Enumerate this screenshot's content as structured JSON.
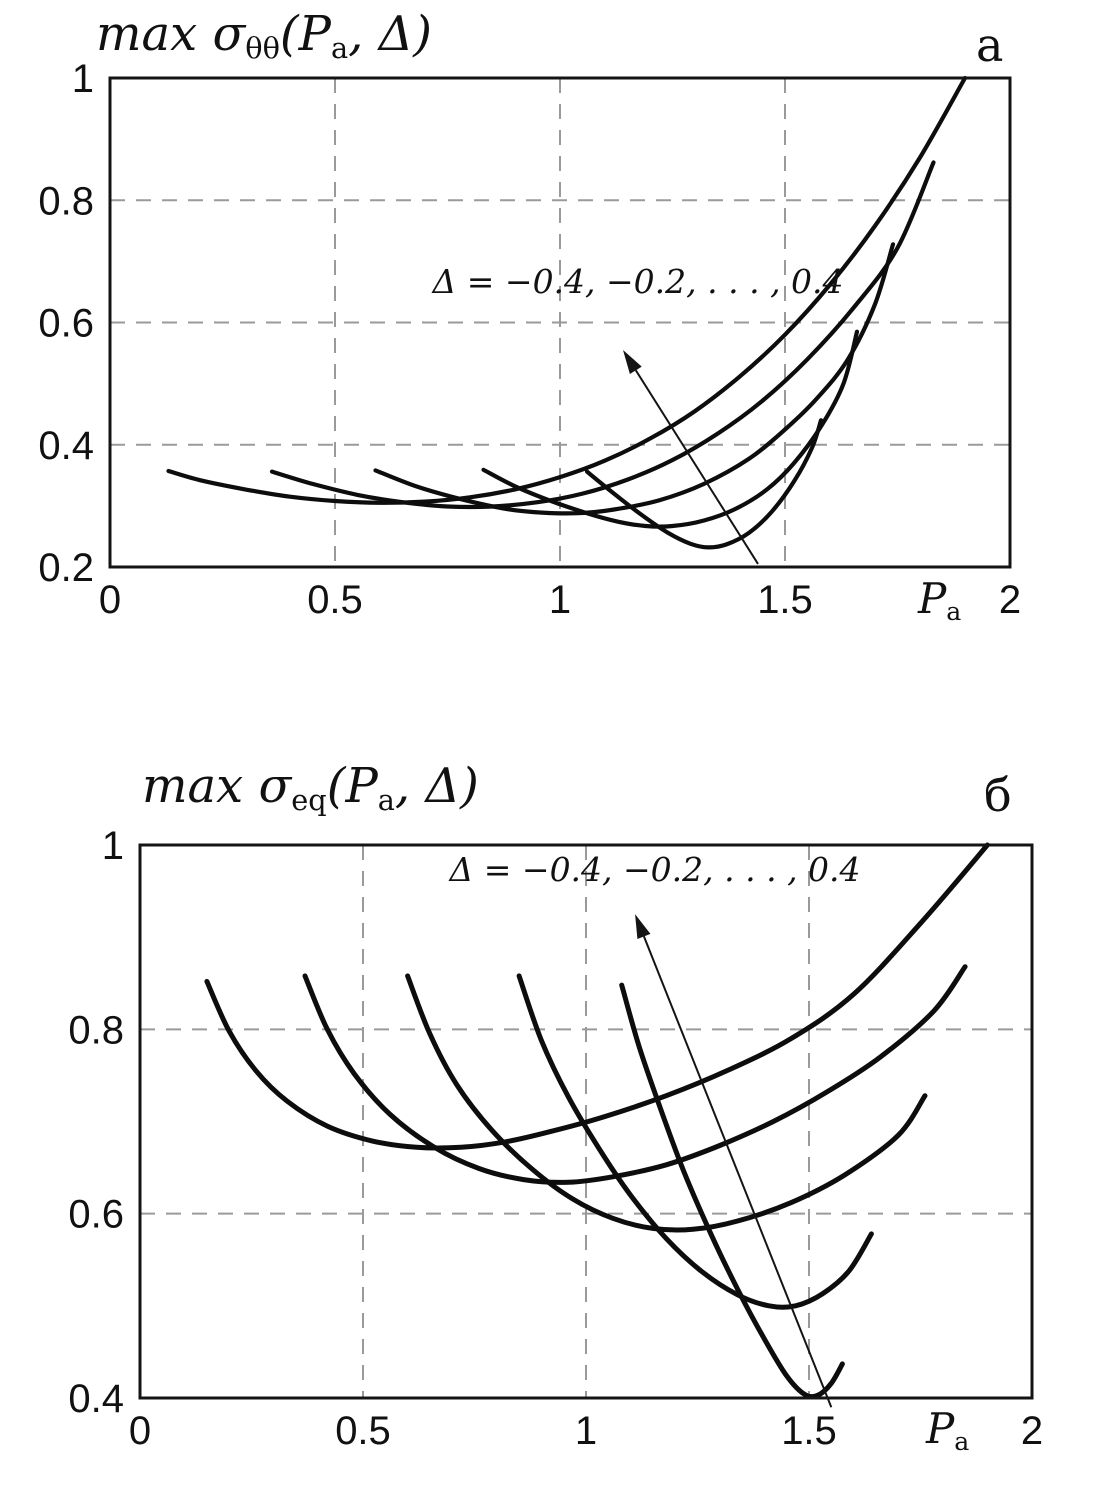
{
  "figure": {
    "background": "#ffffff",
    "curve_color": "#0d0d0d",
    "grid_color": "#9a9a9a"
  },
  "chart_data": [
    {
      "type": "line",
      "panel_label": "a",
      "title_segments": [
        {
          "t": "max σ"
        },
        {
          "t": "θθ",
          "sub": true
        },
        {
          "t": "(P"
        },
        {
          "t": "a",
          "sub": true
        },
        {
          "t": ", Δ)"
        }
      ],
      "xlabel_segments": [
        {
          "t": "P"
        },
        {
          "t": "a",
          "sub": true
        }
      ],
      "xlim": [
        0,
        2
      ],
      "ylim": [
        0.2,
        1
      ],
      "xticks": {
        "values": [
          0,
          0.5,
          1,
          1.5,
          2
        ],
        "labels": [
          "0",
          "0.5",
          "1",
          "1.5",
          "2"
        ]
      },
      "yticks": {
        "values": [
          0.2,
          0.4,
          0.6,
          0.8,
          1
        ],
        "labels": [
          "0.2",
          "0.4",
          "0.6",
          "0.8",
          "1"
        ]
      },
      "grid": true,
      "annotation": {
        "text": "Δ = −0.4, −0.2, . . . , 0.4",
        "arrow_from": [
          1.44,
          0.205
        ],
        "arrow_to": [
          1.14,
          0.555
        ]
      },
      "series": [
        {
          "name": "Δ = −0.4",
          "points": [
            [
              0.13,
              0.357
            ],
            [
              0.2,
              0.342
            ],
            [
              0.3,
              0.327
            ],
            [
              0.4,
              0.315
            ],
            [
              0.5,
              0.308
            ],
            [
              0.6,
              0.305
            ],
            [
              0.7,
              0.307
            ],
            [
              0.8,
              0.314
            ],
            [
              0.9,
              0.327
            ],
            [
              1.0,
              0.347
            ],
            [
              1.1,
              0.374
            ],
            [
              1.2,
              0.41
            ],
            [
              1.3,
              0.455
            ],
            [
              1.4,
              0.512
            ],
            [
              1.5,
              0.58
            ],
            [
              1.6,
              0.662
            ],
            [
              1.7,
              0.758
            ],
            [
              1.8,
              0.87
            ],
            [
              1.9,
              1.0
            ]
          ]
        },
        {
          "name": "Δ = −0.2",
          "points": [
            [
              0.36,
              0.356
            ],
            [
              0.45,
              0.336
            ],
            [
              0.55,
              0.318
            ],
            [
              0.65,
              0.306
            ],
            [
              0.75,
              0.299
            ],
            [
              0.85,
              0.299
            ],
            [
              0.95,
              0.306
            ],
            [
              1.05,
              0.32
            ],
            [
              1.15,
              0.343
            ],
            [
              1.25,
              0.375
            ],
            [
              1.35,
              0.418
            ],
            [
              1.45,
              0.472
            ],
            [
              1.55,
              0.54
            ],
            [
              1.65,
              0.622
            ],
            [
              1.75,
              0.722
            ],
            [
              1.83,
              0.862
            ]
          ]
        },
        {
          "name": "Δ = 0",
          "points": [
            [
              0.59,
              0.358
            ],
            [
              0.68,
              0.332
            ],
            [
              0.78,
              0.311
            ],
            [
              0.88,
              0.295
            ],
            [
              0.96,
              0.289
            ],
            [
              1.04,
              0.288
            ],
            [
              1.12,
              0.294
            ],
            [
              1.22,
              0.309
            ],
            [
              1.32,
              0.336
            ],
            [
              1.42,
              0.377
            ],
            [
              1.5,
              0.425
            ],
            [
              1.57,
              0.475
            ],
            [
              1.64,
              0.54
            ],
            [
              1.7,
              0.63
            ],
            [
              1.74,
              0.728
            ]
          ]
        },
        {
          "name": "Δ = 0.2",
          "points": [
            [
              0.83,
              0.359
            ],
            [
              0.9,
              0.332
            ],
            [
              0.98,
              0.308
            ],
            [
              1.06,
              0.288
            ],
            [
              1.13,
              0.274
            ],
            [
              1.19,
              0.267
            ],
            [
              1.25,
              0.267
            ],
            [
              1.32,
              0.276
            ],
            [
              1.39,
              0.295
            ],
            [
              1.46,
              0.327
            ],
            [
              1.52,
              0.37
            ],
            [
              1.58,
              0.43
            ],
            [
              1.63,
              0.5
            ],
            [
              1.66,
              0.585
            ]
          ]
        },
        {
          "name": "Δ = 0.4",
          "points": [
            [
              1.06,
              0.356
            ],
            [
              1.12,
              0.32
            ],
            [
              1.18,
              0.286
            ],
            [
              1.24,
              0.256
            ],
            [
              1.29,
              0.238
            ],
            [
              1.33,
              0.232
            ],
            [
              1.37,
              0.237
            ],
            [
              1.42,
              0.256
            ],
            [
              1.47,
              0.29
            ],
            [
              1.52,
              0.34
            ],
            [
              1.56,
              0.395
            ],
            [
              1.58,
              0.44
            ]
          ]
        }
      ]
    },
    {
      "type": "line",
      "panel_label": "б",
      "title_segments": [
        {
          "t": "max σ"
        },
        {
          "t": "eq",
          "sub": true
        },
        {
          "t": "(P"
        },
        {
          "t": "a",
          "sub": true
        },
        {
          "t": ", Δ)"
        }
      ],
      "xlabel_segments": [
        {
          "t": "P"
        },
        {
          "t": "a",
          "sub": true
        }
      ],
      "xlim": [
        0,
        2
      ],
      "ylim": [
        0.4,
        1
      ],
      "xticks": {
        "values": [
          0,
          0.5,
          1,
          1.5,
          2
        ],
        "labels": [
          "0",
          "0.5",
          "1",
          "1.5",
          "2"
        ]
      },
      "yticks": {
        "values": [
          0.4,
          0.6,
          0.8,
          1
        ],
        "labels": [
          "0.4",
          "0.6",
          "0.8",
          "1"
        ]
      },
      "grid": true,
      "annotation": {
        "text": "Δ = −0.4, −0.2, . . . , 0.4",
        "arrow_from": [
          1.55,
          0.39
        ],
        "arrow_to": [
          1.11,
          0.925
        ]
      },
      "series": [
        {
          "name": "Δ = −0.4",
          "points": [
            [
              0.15,
              0.852
            ],
            [
              0.2,
              0.798
            ],
            [
              0.26,
              0.755
            ],
            [
              0.33,
              0.722
            ],
            [
              0.42,
              0.695
            ],
            [
              0.52,
              0.679
            ],
            [
              0.62,
              0.672
            ],
            [
              0.72,
              0.672
            ],
            [
              0.82,
              0.678
            ],
            [
              0.92,
              0.689
            ],
            [
              1.04,
              0.705
            ],
            [
              1.18,
              0.728
            ],
            [
              1.32,
              0.756
            ],
            [
              1.46,
              0.79
            ],
            [
              1.6,
              0.838
            ],
            [
              1.75,
              0.915
            ],
            [
              1.9,
              1.0
            ]
          ]
        },
        {
          "name": "Δ = −0.2",
          "points": [
            [
              0.37,
              0.858
            ],
            [
              0.42,
              0.8
            ],
            [
              0.48,
              0.752
            ],
            [
              0.56,
              0.708
            ],
            [
              0.66,
              0.672
            ],
            [
              0.76,
              0.649
            ],
            [
              0.86,
              0.637
            ],
            [
              0.96,
              0.634
            ],
            [
              1.06,
              0.64
            ],
            [
              1.18,
              0.653
            ],
            [
              1.3,
              0.674
            ],
            [
              1.42,
              0.7
            ],
            [
              1.54,
              0.732
            ],
            [
              1.66,
              0.77
            ],
            [
              1.78,
              0.82
            ],
            [
              1.85,
              0.868
            ]
          ]
        },
        {
          "name": "Δ = 0",
          "points": [
            [
              0.6,
              0.858
            ],
            [
              0.65,
              0.795
            ],
            [
              0.71,
              0.74
            ],
            [
              0.79,
              0.69
            ],
            [
              0.88,
              0.648
            ],
            [
              0.97,
              0.616
            ],
            [
              1.06,
              0.595
            ],
            [
              1.15,
              0.584
            ],
            [
              1.24,
              0.583
            ],
            [
              1.34,
              0.592
            ],
            [
              1.46,
              0.612
            ],
            [
              1.58,
              0.642
            ],
            [
              1.7,
              0.685
            ],
            [
              1.76,
              0.728
            ]
          ]
        },
        {
          "name": "Δ = 0.2",
          "points": [
            [
              0.85,
              0.858
            ],
            [
              0.9,
              0.788
            ],
            [
              0.96,
              0.727
            ],
            [
              1.03,
              0.67
            ],
            [
              1.1,
              0.62
            ],
            [
              1.18,
              0.573
            ],
            [
              1.26,
              0.537
            ],
            [
              1.34,
              0.512
            ],
            [
              1.41,
              0.5
            ],
            [
              1.47,
              0.5
            ],
            [
              1.53,
              0.513
            ],
            [
              1.59,
              0.538
            ],
            [
              1.64,
              0.578
            ]
          ]
        },
        {
          "name": "Δ = 0.4",
          "points": [
            [
              1.08,
              0.848
            ],
            [
              1.12,
              0.78
            ],
            [
              1.17,
              0.71
            ],
            [
              1.22,
              0.645
            ],
            [
              1.28,
              0.578
            ],
            [
              1.34,
              0.518
            ],
            [
              1.4,
              0.464
            ],
            [
              1.45,
              0.424
            ],
            [
              1.49,
              0.404
            ],
            [
              1.52,
              0.403
            ],
            [
              1.55,
              0.416
            ],
            [
              1.575,
              0.437
            ]
          ]
        }
      ]
    }
  ]
}
